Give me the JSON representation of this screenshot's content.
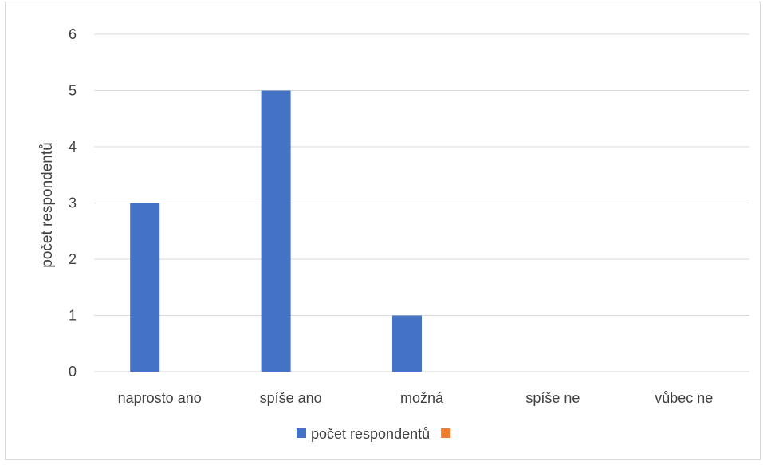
{
  "chart_data": {
    "type": "bar",
    "categories": [
      "naprosto ano",
      "spíše ano",
      "možná",
      "spíše ne",
      "vůbec ne"
    ],
    "series": [
      {
        "name": "počet respondentů",
        "values": [
          3,
          5,
          1,
          0,
          0
        ],
        "color": "#4472c4"
      },
      {
        "name": "",
        "values": [
          0,
          0,
          0,
          0,
          0
        ],
        "color": "#ed7d31"
      }
    ],
    "title": "",
    "xlabel": "",
    "ylabel": "počet respondentů",
    "ylim": [
      0,
      6
    ],
    "yticks": [
      "0",
      "1",
      "2",
      "3",
      "4",
      "5",
      "6"
    ],
    "grid": true,
    "legend_position": "bottom",
    "colors": {
      "grid": "#d9d9d9",
      "axis": "#d9d9d9",
      "text": "#404040"
    }
  }
}
